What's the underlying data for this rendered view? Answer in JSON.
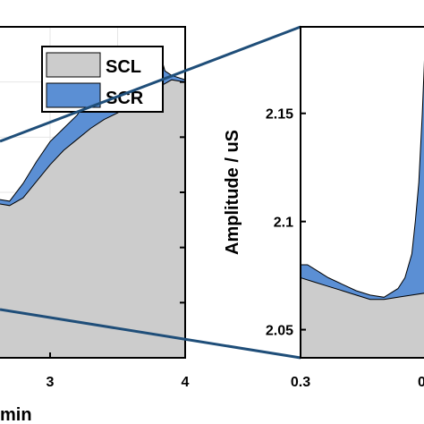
{
  "colors": {
    "scl_fill": "#cccccc",
    "scr_fill": "#5b8fd4",
    "frame": "#000000",
    "connector": "#1f4e79",
    "grid": "#e6e6e6"
  },
  "chart_data": [
    {
      "type": "area",
      "panel": "left",
      "xlabel": "min",
      "ylabel": "",
      "xlim": [
        2.0,
        4.0
      ],
      "ylim": [
        1.0,
        4.0
      ],
      "x_ticks": [
        3,
        4
      ],
      "x_tick_labels": [
        "3",
        "4"
      ],
      "grid": true,
      "legend": {
        "placement": "top-right",
        "entries": [
          "SCL",
          "SCR"
        ]
      },
      "series": [
        {
          "name": "SCL",
          "x": [
            2.0,
            2.1,
            2.2,
            2.3,
            2.4,
            2.5,
            2.6,
            2.7,
            2.8,
            2.9,
            3.0,
            3.1,
            3.2,
            3.3,
            3.4,
            3.5,
            3.6,
            3.7,
            3.8,
            3.9,
            4.0
          ],
          "values": [
            2.78,
            2.75,
            2.72,
            2.6,
            2.5,
            2.45,
            2.4,
            2.38,
            2.45,
            2.6,
            2.75,
            2.88,
            2.98,
            3.08,
            3.16,
            3.22,
            3.3,
            3.38,
            3.45,
            3.52,
            3.5
          ]
        },
        {
          "name": "SCR",
          "x": [
            2.0,
            2.05,
            2.1,
            2.15,
            2.2,
            2.3,
            2.4,
            2.5,
            2.6,
            2.7,
            2.8,
            2.9,
            3.0,
            3.1,
            3.2,
            3.3,
            3.4,
            3.5,
            3.6,
            3.7,
            3.75,
            3.8,
            3.85,
            3.9,
            4.0
          ],
          "values": [
            3.45,
            3.18,
            2.95,
            2.88,
            2.88,
            2.72,
            2.56,
            2.5,
            2.44,
            2.42,
            2.58,
            2.78,
            2.96,
            3.08,
            3.2,
            3.38,
            3.42,
            3.46,
            3.5,
            3.56,
            3.7,
            3.82,
            3.6,
            3.56,
            3.52
          ]
        }
      ]
    },
    {
      "type": "area",
      "panel": "right",
      "xlabel": "",
      "ylabel": "Amplitude / uS",
      "xlim": [
        0.3,
        0.48
      ],
      "ylim": [
        2.037,
        2.19
      ],
      "x_ticks": [
        0.3
      ],
      "x_tick_labels": [
        "0.3"
      ],
      "y_ticks": [
        2.05,
        2.1,
        2.15
      ],
      "y_tick_labels": [
        "2.05",
        "2.1",
        "2.15"
      ],
      "grid": false,
      "series": [
        {
          "name": "SCL",
          "x": [
            0.3,
            0.32,
            0.34,
            0.36,
            0.38,
            0.4,
            0.42,
            0.44,
            0.46,
            0.48
          ],
          "values": [
            2.074,
            2.072,
            2.07,
            2.068,
            2.066,
            2.064,
            2.064,
            2.065,
            2.066,
            2.067
          ]
        },
        {
          "name": "SCR",
          "x": [
            0.3,
            0.31,
            0.32,
            0.34,
            0.36,
            0.38,
            0.4,
            0.42,
            0.44,
            0.45,
            0.46,
            0.465,
            0.47,
            0.475,
            0.48
          ],
          "values": [
            2.08,
            2.08,
            2.078,
            2.074,
            2.071,
            2.068,
            2.066,
            2.065,
            2.069,
            2.074,
            2.085,
            2.1,
            2.118,
            2.15,
            2.19
          ]
        }
      ]
    }
  ]
}
